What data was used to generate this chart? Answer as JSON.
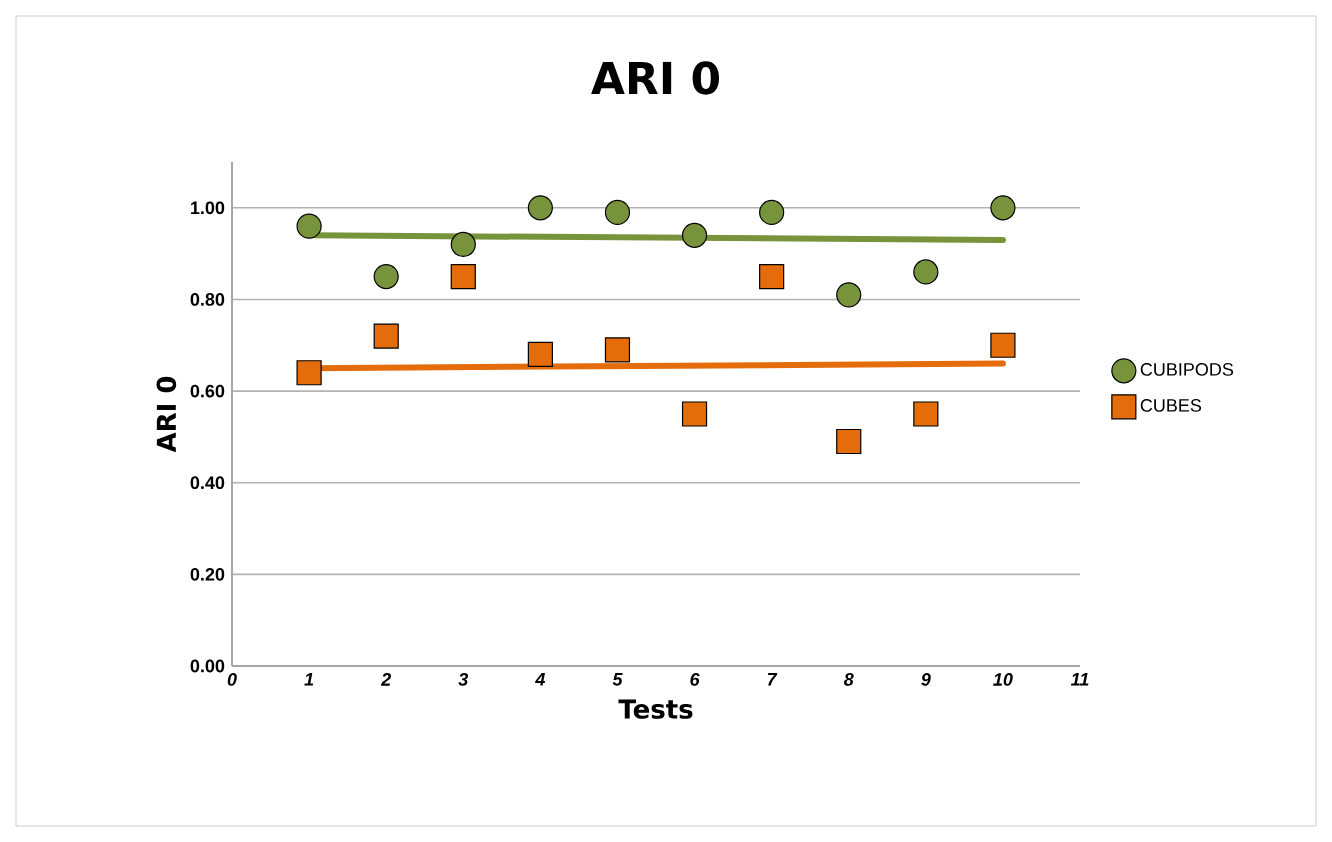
{
  "chart_data": {
    "type": "scatter",
    "title": "ARI 0",
    "xlabel": "Tests",
    "ylabel": "ARI 0",
    "xlim": [
      0,
      11
    ],
    "xticks": [
      0,
      1,
      2,
      3,
      4,
      5,
      6,
      7,
      8,
      9,
      10,
      11
    ],
    "ylim": [
      0,
      1.1
    ],
    "yticks": [
      {
        "value": 0,
        "label": "0.00"
      },
      {
        "value": 0.2,
        "label": "0.20"
      },
      {
        "value": 0.4,
        "label": "0.40"
      },
      {
        "value": 0.6,
        "label": "0.60"
      },
      {
        "value": 0.8,
        "label": "0.80"
      },
      {
        "value": 1.0,
        "label": "1.00"
      }
    ],
    "grid": "y",
    "legend": "right",
    "series": [
      {
        "name": "CUBIPODS",
        "marker": "circle",
        "color": "#77933c",
        "x": [
          1,
          2,
          3,
          4,
          5,
          6,
          7,
          8,
          9,
          10
        ],
        "values": [
          0.96,
          0.85,
          0.92,
          1.0,
          0.99,
          0.94,
          0.99,
          0.81,
          0.86,
          1.0
        ]
      },
      {
        "name": "CUBES",
        "marker": "square",
        "color": "#e46c0a",
        "x": [
          1,
          2,
          3,
          4,
          5,
          6,
          7,
          8,
          9,
          10
        ],
        "values": [
          0.64,
          0.72,
          0.85,
          0.68,
          0.69,
          0.55,
          0.85,
          0.49,
          0.55,
          0.7
        ]
      },
      {
        "type": "line",
        "marker": "none",
        "line_style": "solid",
        "color": "#77933c",
        "x": [
          1,
          10
        ],
        "values": [
          0.94,
          0.93
        ]
      },
      {
        "type": "line",
        "marker": "none",
        "line_style": "solid",
        "color": "#e46c0a",
        "x": [
          1,
          10
        ],
        "values": [
          0.65,
          0.66
        ]
      }
    ]
  }
}
